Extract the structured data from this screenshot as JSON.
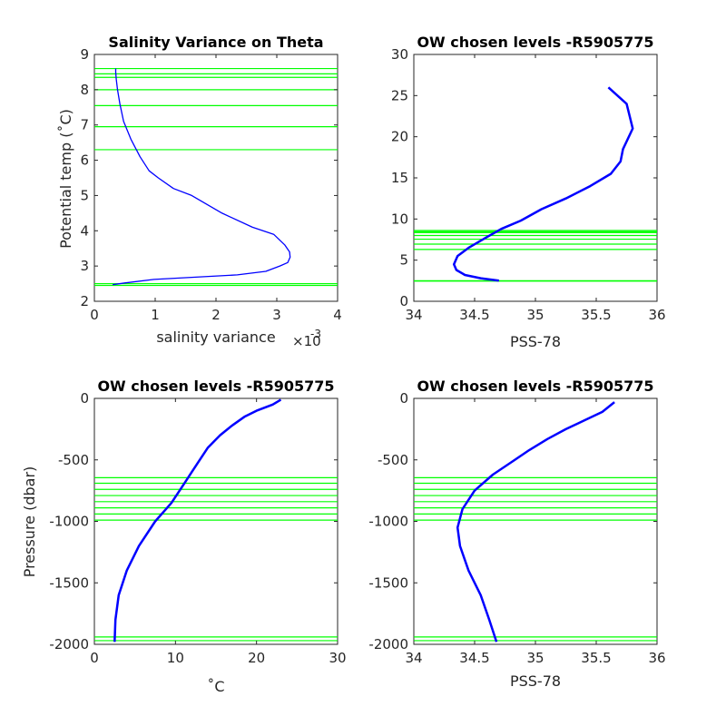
{
  "chart_data": [
    {
      "id": "p1",
      "type": "line",
      "title": "Salinity Variance on Theta",
      "xlabel": "salinity variance",
      "x_exponent_label": "×10",
      "x_exponent": "-3",
      "ylabel": "Potential temp (˚C)",
      "xlim": [
        0,
        4
      ],
      "ylim": [
        2,
        9
      ],
      "xticks": [
        "0",
        "1",
        "2",
        "3",
        "4"
      ],
      "yticks": [
        "2",
        "3",
        "4",
        "5",
        "6",
        "7",
        "8",
        "9"
      ],
      "series": [
        {
          "color": "#0000ff",
          "x": [
            0.3,
            0.5,
            0.98,
            1.6,
            2.35,
            2.82,
            3.05,
            3.18,
            3.22,
            3.21,
            3.13,
            2.95,
            2.6,
            2.1,
            1.6,
            1.3,
            1.05,
            0.9,
            0.75,
            0.6,
            0.48,
            0.42,
            0.38,
            0.36,
            0.35,
            0.35
          ],
          "y": [
            2.47,
            2.52,
            2.62,
            2.68,
            2.75,
            2.85,
            3.0,
            3.1,
            3.25,
            3.4,
            3.6,
            3.9,
            4.1,
            4.5,
            5.0,
            5.2,
            5.5,
            5.7,
            6.1,
            6.6,
            7.1,
            7.6,
            8.0,
            8.3,
            8.5,
            8.6
          ]
        }
      ],
      "hlines": [
        2.45,
        2.5,
        6.3,
        6.95,
        7.55,
        8.0,
        8.35,
        8.45,
        8.6
      ],
      "hline_color": "#00ff00"
    },
    {
      "id": "p2",
      "type": "line",
      "title": "OW chosen levels -R5905775",
      "xlabel": "PSS-78",
      "ylabel": "",
      "xlim": [
        34,
        36
      ],
      "ylim": [
        0,
        30
      ],
      "xticks": [
        "34",
        "34.5",
        "35",
        "35.5",
        "36"
      ],
      "yticks": [
        "0",
        "5",
        "10",
        "15",
        "20",
        "25",
        "30"
      ],
      "series": [
        {
          "color": "#0000ff",
          "x": [
            34.7,
            34.55,
            34.42,
            34.35,
            34.33,
            34.36,
            34.45,
            34.6,
            34.72,
            34.88,
            35.05,
            35.25,
            35.45,
            35.62,
            35.7,
            35.72,
            35.8,
            35.75,
            35.6
          ],
          "y": [
            2.5,
            2.8,
            3.2,
            3.8,
            4.5,
            5.5,
            6.5,
            7.8,
            8.8,
            9.8,
            11.2,
            12.5,
            14.0,
            15.5,
            17.0,
            18.5,
            21.0,
            24.0,
            26.0
          ]
        }
      ],
      "hlines": [
        2.45,
        2.5,
        6.3,
        6.95,
        7.55,
        8.0,
        8.35,
        8.45,
        8.6
      ],
      "hline_color": "#00ff00"
    },
    {
      "id": "p3",
      "type": "line",
      "title": "OW chosen levels -R5905775",
      "xlabel": "˚C",
      "ylabel": "Pressure (dbar)",
      "xlim": [
        0,
        30
      ],
      "ylim": [
        -2000,
        0
      ],
      "xticks": [
        "0",
        "10",
        "20",
        "30"
      ],
      "yticks": [
        "-2000",
        "-1500",
        "-1000",
        "-500",
        "0"
      ],
      "series": [
        {
          "color": "#0000ff",
          "x": [
            2.5,
            2.6,
            3.0,
            4.0,
            5.5,
            7.5,
            9.5,
            11.0,
            12.0,
            13.0,
            14.0,
            15.5,
            17.0,
            18.5,
            20.0,
            22.0,
            23.0
          ],
          "y": [
            -1980,
            -1800,
            -1600,
            -1400,
            -1200,
            -1000,
            -850,
            -700,
            -600,
            -500,
            -400,
            -300,
            -220,
            -150,
            -100,
            -50,
            -10
          ]
        }
      ],
      "hlines": [
        -1940,
        -1970,
        -990,
        -940,
        -890,
        -840,
        -790,
        -740,
        -690,
        -645
      ],
      "hline_color": "#00ff00"
    },
    {
      "id": "p4",
      "type": "line",
      "title": "OW chosen levels -R5905775",
      "xlabel": "PSS-78",
      "ylabel": "",
      "xlim": [
        34,
        36
      ],
      "ylim": [
        -2000,
        0
      ],
      "xticks": [
        "34",
        "34.5",
        "35",
        "35.5",
        "36"
      ],
      "yticks": [
        "-2000",
        "-1500",
        "-1000",
        "-500",
        "0"
      ],
      "series": [
        {
          "color": "#0000ff",
          "x": [
            34.68,
            34.62,
            34.55,
            34.45,
            34.38,
            34.36,
            34.4,
            34.5,
            34.65,
            34.8,
            34.95,
            35.1,
            35.25,
            35.4,
            35.55,
            35.65
          ],
          "y": [
            -1980,
            -1800,
            -1600,
            -1400,
            -1200,
            -1050,
            -900,
            -750,
            -620,
            -520,
            -420,
            -330,
            -250,
            -180,
            -110,
            -30
          ]
        }
      ],
      "hlines": [
        -1940,
        -1970,
        -990,
        -940,
        -890,
        -840,
        -790,
        -740,
        -690,
        -645
      ],
      "hline_color": "#00ff00"
    }
  ]
}
